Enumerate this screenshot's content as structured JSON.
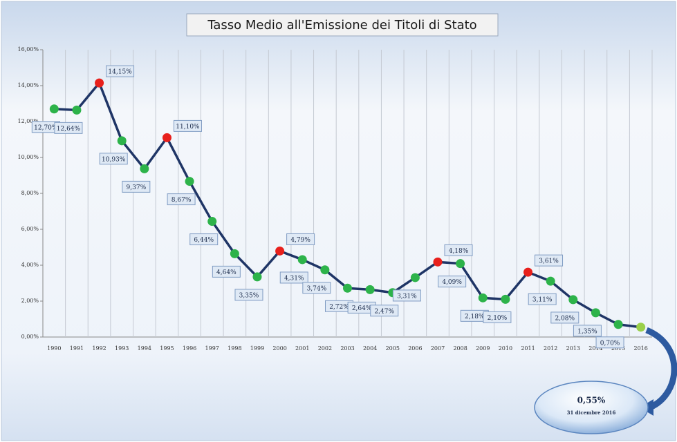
{
  "chart_data": {
    "type": "line",
    "title": "Tasso Medio all'Emissione dei Titoli di Stato",
    "categories": [
      "1990",
      "1991",
      "1992",
      "1993",
      "1994",
      "1995",
      "1996",
      "1997",
      "1998",
      "1999",
      "2000",
      "2001",
      "2002",
      "2003",
      "2004",
      "2005",
      "2006",
      "2007",
      "2008",
      "2009",
      "2010",
      "2011",
      "2012",
      "2013",
      "2014",
      "2015",
      "2016"
    ],
    "series": [
      {
        "name": "Tasso medio",
        "color": "#1f3566",
        "values": [
          12.7,
          12.64,
          14.15,
          10.93,
          9.37,
          11.1,
          8.67,
          6.44,
          4.64,
          3.35,
          4.79,
          4.31,
          3.74,
          2.72,
          2.64,
          2.47,
          3.31,
          4.18,
          4.09,
          2.18,
          2.1,
          3.61,
          3.11,
          2.08,
          1.35,
          0.7,
          0.55
        ],
        "value_labels": [
          "12,70%",
          "12,64%",
          "14,15%",
          "10,93%",
          "9,37%",
          "11,10%",
          "8,67%",
          "6,44%",
          "4,64%",
          "3,35%",
          "4,79%",
          "4,31%",
          "3,74%",
          "2,72%",
          "2,64%",
          "2,47%",
          "3,31%",
          "4,18%",
          "4,09%",
          "2,18%",
          "2,10%",
          "3,61%",
          "3,11%",
          "2,08%",
          "1,35%",
          "0,70%",
          "0,55%"
        ],
        "point_colors": [
          "#2db34a",
          "#2db34a",
          "#e8201c",
          "#2db34a",
          "#2db34a",
          "#e8201c",
          "#2db34a",
          "#2db34a",
          "#2db34a",
          "#2db34a",
          "#e8201c",
          "#2db34a",
          "#2db34a",
          "#2db34a",
          "#2db34a",
          "#2db34a",
          "#2db34a",
          "#e8201c",
          "#2db34a",
          "#2db34a",
          "#2db34a",
          "#e8201c",
          "#2db34a",
          "#2db34a",
          "#2db34a",
          "#2db34a",
          "#9ad04a"
        ]
      }
    ],
    "ylim": [
      0,
      16
    ],
    "yticks": [
      {
        "value": 0,
        "label": "0,00%"
      },
      {
        "value": 2,
        "label": "2,00%"
      },
      {
        "value": 4,
        "label": "4,00%"
      },
      {
        "value": 6,
        "label": "6,00%"
      },
      {
        "value": 8,
        "label": "8,00%"
      },
      {
        "value": 10,
        "label": "10,00%"
      },
      {
        "value": 12,
        "label": "12,00%"
      },
      {
        "value": 14,
        "label": "14,00%"
      },
      {
        "value": 16,
        "label": "16,00%"
      }
    ],
    "grid": true,
    "annotation": "31 dicembre 2016"
  }
}
